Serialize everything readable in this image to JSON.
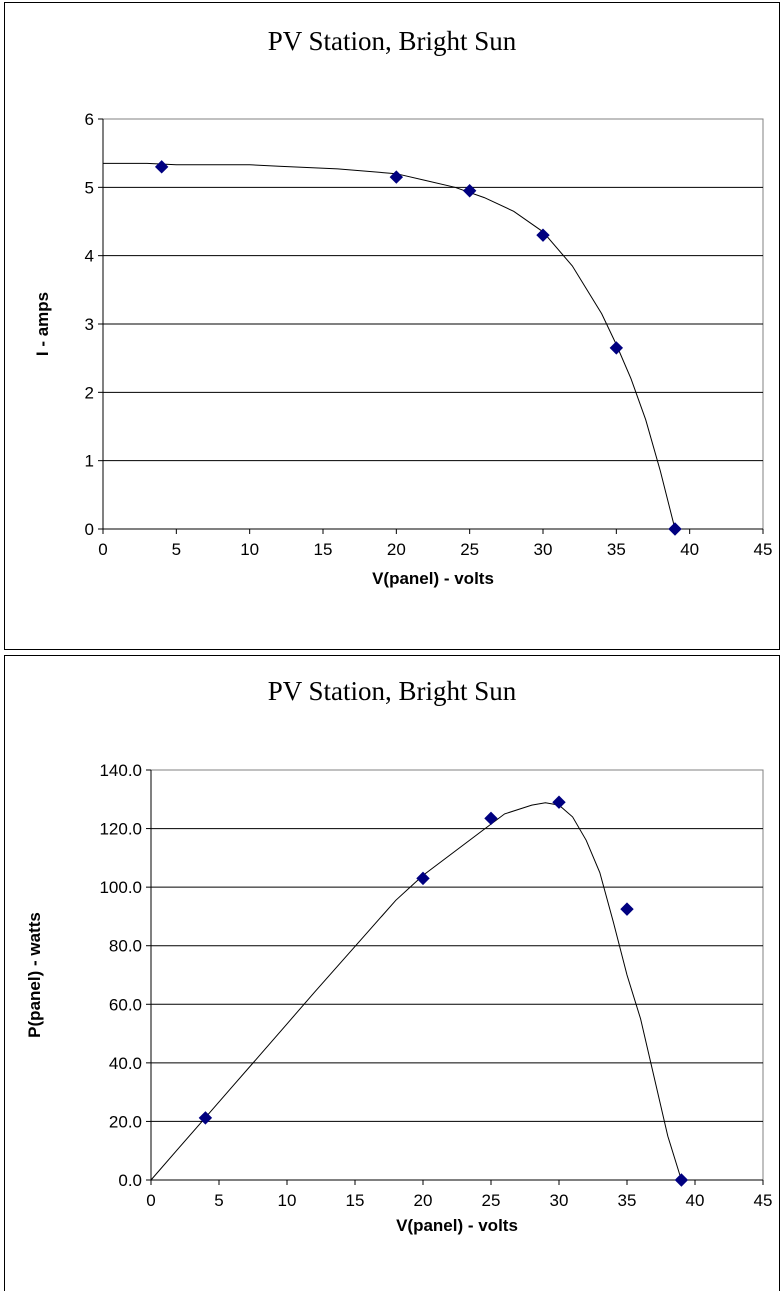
{
  "chart_data": [
    {
      "type": "scatter",
      "title": "PV Station, Bright Sun",
      "xlabel": "V(panel) - volts",
      "ylabel": "I - amps",
      "xlim": [
        0,
        45
      ],
      "ylim": [
        0,
        6
      ],
      "x_ticks": [
        "0",
        "5",
        "10",
        "15",
        "20",
        "25",
        "30",
        "35",
        "40",
        "45"
      ],
      "y_ticks": [
        "0",
        "1",
        "2",
        "3",
        "4",
        "5",
        "6"
      ],
      "grid": "horizontal",
      "legend": "none",
      "marker_color": "#000080",
      "series": [
        {
          "x": [
            4,
            20,
            25,
            30,
            35,
            39
          ],
          "y": [
            5.3,
            5.15,
            4.95,
            4.3,
            2.65,
            0
          ],
          "trendline": {
            "x": [
              0,
              3,
              5,
              10,
              12,
              16,
              20,
              22,
              24,
              26,
              28,
              30,
              32,
              34,
              35,
              36,
              37,
              38,
              39
            ],
            "y": [
              5.35,
              5.35,
              5.33,
              5.33,
              5.31,
              5.27,
              5.2,
              5.1,
              5.0,
              4.85,
              4.65,
              4.35,
              3.85,
              3.15,
              2.7,
              2.2,
              1.6,
              0.85,
              0.0
            ]
          }
        }
      ]
    },
    {
      "type": "scatter",
      "title": "PV Station, Bright Sun",
      "xlabel": "V(panel) - volts",
      "ylabel": "P(panel) - watts",
      "xlim": [
        0,
        45
      ],
      "ylim": [
        0,
        140
      ],
      "x_ticks": [
        "0",
        "5",
        "10",
        "15",
        "20",
        "25",
        "30",
        "35",
        "40",
        "45"
      ],
      "y_ticks": [
        "0.0",
        "20.0",
        "40.0",
        "60.0",
        "80.0",
        "100.0",
        "120.0",
        "140.0"
      ],
      "grid": "horizontal",
      "legend": "none",
      "marker_color": "#000080",
      "series": [
        {
          "x": [
            4,
            20,
            25,
            30,
            35,
            39
          ],
          "y": [
            21.2,
            103,
            123.5,
            129,
            92.5,
            0
          ],
          "trendline": {
            "x": [
              0,
              2,
              4,
              6,
              8,
              10,
              12,
              14,
              16,
              18,
              20,
              22,
              24,
              26,
              28,
              29,
              30,
              31,
              32,
              33,
              34,
              35,
              36,
              37,
              38,
              39
            ],
            "y": [
              0,
              10.7,
              21.3,
              32,
              42.6,
              53.3,
              64,
              74.5,
              85,
              95.5,
              104,
              111,
              118,
              125,
              128,
              128.8,
              128,
              124,
              116,
              105,
              88,
              70,
              55,
              35,
              15,
              0
            ]
          }
        }
      ]
    }
  ]
}
